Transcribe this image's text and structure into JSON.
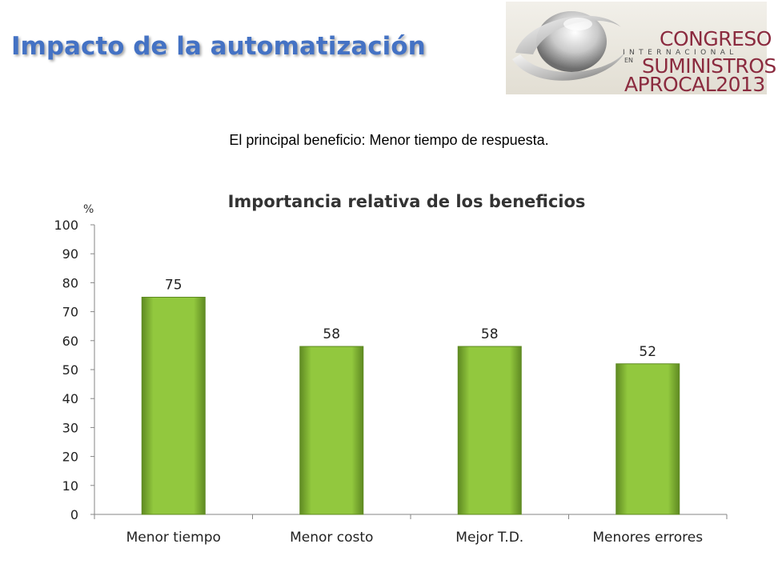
{
  "slide": {
    "title": "Impacto de la automatización",
    "subtitle": "El principal beneficio: Menor tiempo de respuesta."
  },
  "logo": {
    "line1": "CONGRESO",
    "line2": "INTERNACIONAL",
    "line3": "EN",
    "line4": "SUMINISTROS",
    "line5": "APROCAL2013"
  },
  "colors": {
    "title": "#4472c4",
    "bar": "#92c83e",
    "bar_dark": "#5f8a22",
    "axis": "#868686",
    "logo_text": "#8b2b3f"
  },
  "chart_data": {
    "type": "bar",
    "title": "Importancia relativa de los beneficios",
    "ylabel": "%",
    "xlabel": "",
    "categories": [
      "Menor tiempo",
      "Menor costo",
      "Mejor T.D.",
      "Menores errores"
    ],
    "values": [
      75,
      58,
      58,
      52
    ],
    "data_labels": [
      "75",
      "58",
      "58",
      "52"
    ],
    "ylim": [
      0,
      100
    ],
    "yticks": [
      0,
      10,
      20,
      30,
      40,
      50,
      60,
      70,
      80,
      90,
      100
    ],
    "grid": false,
    "legend": "none"
  }
}
